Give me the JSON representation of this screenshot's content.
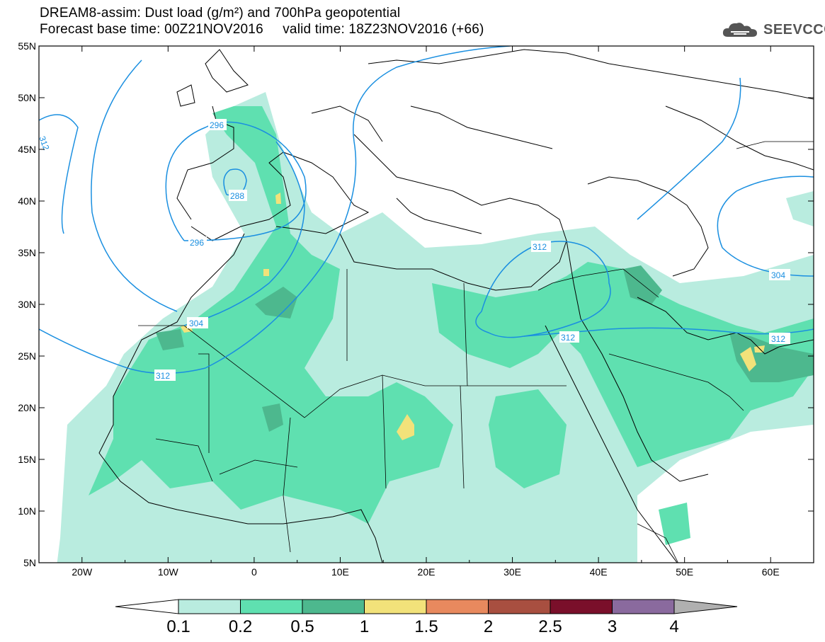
{
  "header": {
    "title_line1": "DREAM8-assim: Dust load (g/m²) and 700hPa geopotential",
    "title_line2": "Forecast base time: 00Z21NOV2016     valid time: 18Z23NOV2016 (+66)",
    "logo_text": "SEEVCCC"
  },
  "map": {
    "lon_range": [
      -25,
      65
    ],
    "lat_range": [
      5,
      55
    ],
    "x_ticks": [
      "20W",
      "10W",
      "0",
      "10E",
      "20E",
      "30E",
      "40E",
      "50E",
      "60E"
    ],
    "y_ticks": [
      "55N",
      "50N",
      "45N",
      "40N",
      "35N",
      "30N",
      "25N",
      "20N",
      "15N",
      "10N",
      "5N"
    ],
    "contour_labels": [
      "312",
      "296",
      "288",
      "296",
      "304",
      "312",
      "312",
      "312",
      "312",
      "304"
    ],
    "contour_color": "#1a8fe0"
  },
  "colorbar": {
    "labels": [
      "0.1",
      "0.2",
      "0.5",
      "1",
      "1.5",
      "2",
      "2.5",
      "3",
      "4"
    ],
    "colors": [
      "#b9ecdf",
      "#5fe0b0",
      "#4db88e",
      "#f2e27a",
      "#e8895e",
      "#a84f40",
      "#7a0f2a",
      "#8a6a9e"
    ],
    "under_color": "#ffffff",
    "over_color": "#b0b0b0"
  },
  "chart_data": {
    "type": "heatmap",
    "title": "DREAM8-assim: Dust load (g/m²) and 700hPa geopotential",
    "subtitle": "Forecast base time: 00Z21NOV2016     valid time: 18Z23NOV2016 (+66)",
    "x_range": [
      -25,
      65
    ],
    "y_range": [
      5,
      55
    ],
    "x_tick_labels": [
      "20W",
      "10W",
      "0",
      "10E",
      "20E",
      "30E",
      "40E",
      "50E",
      "60E"
    ],
    "y_tick_labels": [
      "55N",
      "50N",
      "45N",
      "40N",
      "35N",
      "30N",
      "25N",
      "20N",
      "15N",
      "10N",
      "5N"
    ],
    "color_levels": [
      0.1,
      0.2,
      0.5,
      1,
      1.5,
      2,
      2.5,
      3,
      4
    ],
    "geopotential_contours": [
      288,
      296,
      304,
      312
    ]
  }
}
